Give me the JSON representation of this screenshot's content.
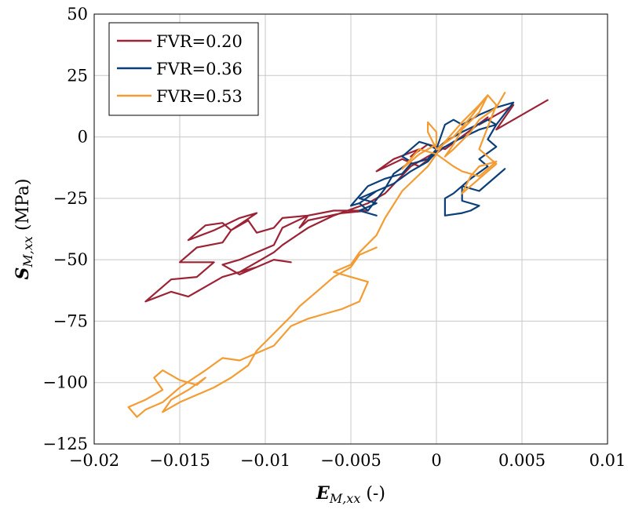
{
  "chart_data": {
    "type": "line",
    "xlabel": {
      "symbol": "E",
      "subscript": "M,xx",
      "unit": " (-)"
    },
    "ylabel": {
      "symbol": "S",
      "subscript": "M,xx",
      "unit": " (MPa)"
    },
    "xlim": [
      -0.02,
      0.01
    ],
    "ylim": [
      -125,
      50
    ],
    "x_ticks": [
      -0.02,
      -0.015,
      -0.01,
      -0.005,
      0,
      0.005,
      0.01
    ],
    "x_tick_labels": [
      "−0.02",
      "−0.015",
      "−0.01",
      "−0.005",
      "0",
      "0.005",
      "0.01"
    ],
    "y_ticks": [
      -125,
      -100,
      -75,
      -50,
      -25,
      0,
      25,
      50
    ],
    "y_tick_labels": [
      "−125",
      "−100",
      "−75",
      "−50",
      "−25",
      "0",
      "25",
      "50"
    ],
    "grid": true,
    "legend_position": "top-left",
    "series": [
      {
        "name": "FVR=0.20",
        "color": "#9b2335",
        "points": [
          [
            0.0065,
            15
          ],
          [
            0.0035,
            3
          ],
          [
            0.0045,
            13
          ],
          [
            0.0025,
            5
          ],
          [
            0.003,
            8
          ],
          [
            0.0005,
            -5
          ],
          [
            -0.0005,
            -3
          ],
          [
            -0.0015,
            -8
          ],
          [
            -0.001,
            -5
          ],
          [
            -0.0025,
            -9
          ],
          [
            -0.0035,
            -14
          ],
          [
            -0.002,
            -9
          ],
          [
            -0.001,
            -12
          ],
          [
            0.0005,
            -4
          ],
          [
            -0.0015,
            -12
          ],
          [
            -0.003,
            -23
          ],
          [
            -0.004,
            -27
          ],
          [
            -0.006,
            -32
          ],
          [
            -0.0075,
            -37
          ],
          [
            -0.009,
            -44
          ],
          [
            -0.0095,
            -47
          ],
          [
            -0.0105,
            -51
          ],
          [
            -0.0115,
            -55
          ],
          [
            -0.0105,
            -53
          ],
          [
            -0.0125,
            -57
          ],
          [
            -0.0135,
            -61
          ],
          [
            -0.0145,
            -65
          ],
          [
            -0.0155,
            -63
          ],
          [
            -0.017,
            -67
          ],
          [
            -0.0155,
            -58
          ],
          [
            -0.014,
            -57
          ],
          [
            -0.013,
            -51
          ],
          [
            -0.015,
            -51
          ],
          [
            -0.014,
            -45
          ],
          [
            -0.0125,
            -43
          ],
          [
            -0.012,
            -38
          ],
          [
            -0.0125,
            -35
          ],
          [
            -0.0135,
            -36
          ],
          [
            -0.0145,
            -42
          ],
          [
            -0.013,
            -38
          ],
          [
            -0.0115,
            -33
          ],
          [
            -0.0105,
            -31
          ],
          [
            -0.012,
            -38
          ],
          [
            -0.011,
            -34
          ],
          [
            -0.0105,
            -39
          ],
          [
            -0.0095,
            -37
          ],
          [
            -0.009,
            -33
          ],
          [
            -0.0075,
            -32
          ],
          [
            -0.008,
            -37
          ],
          [
            -0.0075,
            -34
          ],
          [
            -0.0055,
            -31
          ],
          [
            -0.004,
            -30
          ],
          [
            -0.006,
            -30
          ],
          [
            -0.0075,
            -32
          ],
          [
            -0.009,
            -37
          ],
          [
            -0.0095,
            -44
          ],
          [
            -0.0105,
            -47
          ],
          [
            -0.0115,
            -50
          ],
          [
            -0.0125,
            -52
          ],
          [
            -0.0115,
            -56
          ],
          [
            -0.0105,
            -53
          ],
          [
            -0.0095,
            -50
          ],
          [
            -0.0085,
            -51
          ]
        ]
      },
      {
        "name": "FVR=0.36",
        "color": "#0b3f7a",
        "points": [
          [
            0.004,
            -13
          ],
          [
            0.0025,
            -22
          ],
          [
            0.0015,
            -20
          ],
          [
            0.0015,
            -26
          ],
          [
            0.0025,
            -28
          ],
          [
            0.002,
            -30
          ],
          [
            0.0015,
            -31
          ],
          [
            0.0005,
            -32
          ],
          [
            0.0005,
            -25
          ],
          [
            0.001,
            -23
          ],
          [
            0.0015,
            -20
          ],
          [
            0.002,
            -17
          ],
          [
            0.003,
            -12
          ],
          [
            0.0025,
            -9
          ],
          [
            0.0035,
            -4
          ],
          [
            0.003,
            -1
          ],
          [
            0.0035,
            5
          ],
          [
            0.003,
            7
          ],
          [
            0.0015,
            2
          ],
          [
            0.0005,
            -2
          ],
          [
            0.0,
            -5
          ],
          [
            -0.0005,
            -3
          ],
          [
            -0.001,
            -2
          ],
          [
            -0.002,
            -8
          ],
          [
            -0.0015,
            -10
          ],
          [
            -0.0025,
            -15
          ],
          [
            -0.003,
            -21
          ],
          [
            -0.004,
            -30
          ],
          [
            -0.0045,
            -27
          ],
          [
            -0.0035,
            -22
          ],
          [
            -0.0045,
            -27
          ],
          [
            -0.005,
            -28
          ],
          [
            -0.004,
            -20
          ],
          [
            -0.003,
            -17
          ],
          [
            -0.002,
            -15
          ],
          [
            -0.0015,
            -11
          ],
          [
            -0.0005,
            -9
          ],
          [
            0.0,
            -5
          ],
          [
            0.0005,
            5
          ],
          [
            0.001,
            7
          ],
          [
            0.0015,
            5
          ],
          [
            0.0025,
            9
          ],
          [
            0.0035,
            12
          ],
          [
            0.0045,
            14
          ],
          [
            0.0035,
            5
          ],
          [
            0.0025,
            3
          ],
          [
            0.001,
            -2
          ],
          [
            0.0,
            -6
          ],
          [
            -0.0005,
            -10
          ],
          [
            -0.0015,
            -14
          ],
          [
            -0.0025,
            -19
          ],
          [
            -0.0035,
            -22
          ],
          [
            -0.0045,
            -25
          ],
          [
            -0.0035,
            -27
          ],
          [
            -0.0045,
            -30
          ],
          [
            -0.0035,
            -32
          ]
        ]
      },
      {
        "name": "FVR=0.53",
        "color": "#f39c34",
        "points": [
          [
            0.004,
            18
          ],
          [
            0.0035,
            12
          ],
          [
            0.0025,
            7
          ],
          [
            0.002,
            2
          ],
          [
            0.001,
            -5
          ],
          [
            0.0005,
            -8
          ],
          [
            0.001,
            -3
          ],
          [
            0.0015,
            3
          ],
          [
            0.0025,
            10
          ],
          [
            0.003,
            17
          ],
          [
            0.002,
            8
          ],
          [
            0.001,
            0
          ],
          [
            0.0,
            -5
          ],
          [
            -0.0005,
            2
          ],
          [
            -0.0005,
            6
          ],
          [
            0.0,
            2
          ],
          [
            0.0,
            -3
          ],
          [
            -0.001,
            -7
          ],
          [
            -0.002,
            -13
          ],
          [
            -0.001,
            -5
          ],
          [
            0.0,
            -7
          ],
          [
            0.001,
            -12
          ],
          [
            0.0015,
            -14
          ],
          [
            0.0025,
            -16
          ],
          [
            0.0035,
            -10
          ],
          [
            0.0025,
            -12
          ],
          [
            0.002,
            -16
          ],
          [
            0.0015,
            -23
          ],
          [
            0.0025,
            -17
          ],
          [
            0.0035,
            -11
          ],
          [
            0.0025,
            -5
          ],
          [
            0.003,
            4
          ],
          [
            0.0035,
            13
          ],
          [
            0.003,
            17
          ],
          [
            0.0025,
            13
          ],
          [
            0.0015,
            6
          ],
          [
            0.0005,
            -2
          ],
          [
            -0.0005,
            -12
          ],
          [
            -0.002,
            -22
          ],
          [
            -0.003,
            -33
          ],
          [
            -0.0035,
            -40
          ],
          [
            -0.0045,
            -47
          ],
          [
            -0.005,
            -52
          ],
          [
            -0.006,
            -55
          ],
          [
            -0.005,
            -57
          ],
          [
            -0.004,
            -59
          ],
          [
            -0.0045,
            -67
          ],
          [
            -0.0055,
            -70
          ],
          [
            -0.0065,
            -72
          ],
          [
            -0.0075,
            -74
          ],
          [
            -0.0085,
            -77
          ],
          [
            -0.009,
            -81
          ],
          [
            -0.0095,
            -85
          ],
          [
            -0.0105,
            -88
          ],
          [
            -0.0115,
            -91
          ],
          [
            -0.0125,
            -90
          ],
          [
            -0.0135,
            -95
          ],
          [
            -0.015,
            -102
          ],
          [
            -0.016,
            -108
          ],
          [
            -0.017,
            -111
          ],
          [
            -0.0175,
            -114
          ],
          [
            -0.018,
            -110
          ],
          [
            -0.017,
            -107
          ],
          [
            -0.016,
            -103
          ],
          [
            -0.0165,
            -98
          ],
          [
            -0.016,
            -95
          ],
          [
            -0.015,
            -99
          ],
          [
            -0.014,
            -101
          ],
          [
            -0.0135,
            -98
          ],
          [
            -0.0145,
            -103
          ],
          [
            -0.0155,
            -107
          ],
          [
            -0.016,
            -112
          ],
          [
            -0.015,
            -108
          ],
          [
            -0.014,
            -105
          ],
          [
            -0.013,
            -102
          ],
          [
            -0.012,
            -98
          ],
          [
            -0.011,
            -93
          ],
          [
            -0.0105,
            -87
          ],
          [
            -0.0095,
            -80
          ],
          [
            -0.0085,
            -73
          ],
          [
            -0.008,
            -69
          ],
          [
            -0.007,
            -63
          ],
          [
            -0.006,
            -57
          ],
          [
            -0.005,
            -53
          ],
          [
            -0.0045,
            -48
          ],
          [
            -0.0035,
            -45
          ]
        ]
      }
    ]
  }
}
